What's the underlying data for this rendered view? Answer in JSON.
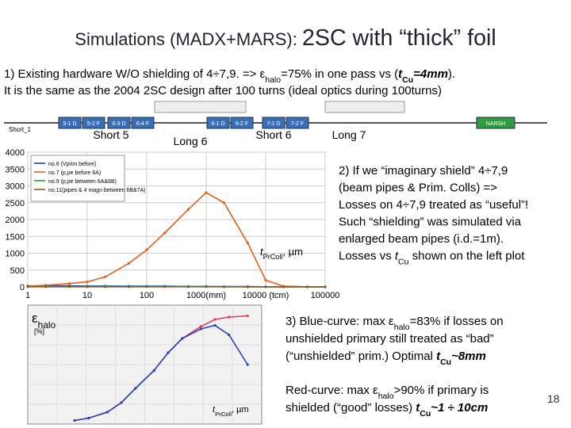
{
  "title": [
    {
      "text": "Simulations (MADX+MARS): "
    },
    {
      "text": "2SC with “thick” foil",
      "style": "large"
    }
  ],
  "intro": [
    [
      {
        "text": "1)  Existing hardware W/O shielding of 4÷7,9. => ε"
      },
      {
        "text": "halo",
        "style": "sub"
      },
      {
        "text": "=75% in one pass vs ("
      },
      {
        "text": "t",
        "style": "bold"
      },
      {
        "text": "Cu",
        "style": "bold-sub"
      },
      {
        "text": "=4mm",
        "style": "bold"
      },
      {
        "text": ")."
      }
    ],
    [
      {
        "text": "It is the same as the 2004 2SC design after 100 turns (ideal optics during 100turns)"
      }
    ]
  ],
  "beamline": {
    "sections": [
      "Short 5",
      "Long 6",
      "Short 6",
      "Long 7",
      "Short_1"
    ],
    "magnets": [
      "5-1 D",
      "5-2 F",
      "6-3 D",
      "6-4 F",
      "6-1 D",
      "6-2 F",
      "7-1 D",
      "7-2 F",
      "NARSH"
    ]
  },
  "note2": [
    [
      {
        "text": "2) If we “imaginary shield” 4÷7,9"
      }
    ],
    [
      {
        "text": "(beam pipes & Prim. Colls) =>"
      }
    ],
    [
      {
        "text": "Losses on 4÷7,9 treated as “useful”!"
      }
    ],
    [
      {
        "text": "Such “shielding” was simulated via"
      }
    ],
    [
      {
        "text": "enlarged beam pipes (i.d.=1m)."
      }
    ],
    [
      {
        "text": "Losses vs "
      },
      {
        "text": "t",
        "style": "italic"
      },
      {
        "text": "Cu",
        "style": "sub"
      },
      {
        "text": " shown on the left plot"
      }
    ]
  ],
  "note3": [
    [
      {
        "text": "3) Blue-curve: max ε"
      },
      {
        "text": "halo",
        "style": "sub"
      },
      {
        "text": "=83% if losses on"
      }
    ],
    [
      {
        "text": "unshielded primary still treated as “bad”"
      }
    ],
    [
      {
        "text": "(“unshielded” prim.) Optimal "
      },
      {
        "text": "t",
        "style": "bold"
      },
      {
        "text": "Cu",
        "style": "bold-sub"
      },
      {
        "text": "~8mm",
        "style": "bold"
      }
    ]
  ],
  "note4": [
    [
      {
        "text": "Red-curve: max ε"
      },
      {
        "text": "halo",
        "style": "sub"
      },
      {
        "text": ">90% if primary is"
      }
    ],
    [
      {
        "text": "shielded (“good” losses) "
      },
      {
        "text": "t",
        "style": "bold"
      },
      {
        "text": "Cu",
        "style": "bold-sub"
      },
      {
        "text": "~1 ÷ 10cm",
        "style": "bold"
      }
    ]
  ],
  "page_number": "18",
  "chart_data": [
    {
      "type": "line",
      "x": [
        1,
        2,
        5,
        10,
        20,
        50,
        100,
        200,
        500,
        1000,
        2000,
        5000,
        10000,
        20000,
        50000,
        100000
      ],
      "series": [
        {
          "name": "no.6 (Vprim before)",
          "color": "#1f3fbf",
          "values": [
            30,
            30,
            30,
            25,
            25,
            20,
            20,
            20,
            15,
            15,
            10,
            10,
            5,
            5,
            5,
            5
          ]
        },
        {
          "name": "no.7 (p,pe before 6A)",
          "color": "#e0601a",
          "values": [
            20,
            50,
            100,
            150,
            300,
            700,
            1100,
            1600,
            2300,
            2800,
            2500,
            1300,
            200,
            20,
            5,
            0
          ]
        },
        {
          "name": "no.9 (p,pe between 6A&6B)",
          "color": "#2a9a3a",
          "values": [
            10,
            10,
            10,
            10,
            10,
            10,
            10,
            10,
            10,
            10,
            5,
            5,
            5,
            0,
            0,
            0
          ]
        },
        {
          "name": "no.11(pipes & 4 magn between 6B&7A)",
          "color": "#8b5a2b",
          "values": [
            5,
            5,
            5,
            5,
            5,
            5,
            5,
            5,
            5,
            5,
            5,
            0,
            0,
            0,
            0,
            0
          ]
        }
      ],
      "xlim": [
        1,
        100000
      ],
      "ylim": [
        0,
        4000
      ],
      "xticks": [
        1,
        10,
        100,
        {
          "value": 1000,
          "label": "1000(mm)"
        },
        {
          "value": 10000,
          "label": "10000 (tcm)"
        },
        100000
      ],
      "yticks": [
        0,
        500,
        1000,
        1500,
        2000,
        2500,
        3000,
        3500,
        4000
      ],
      "log_x": true,
      "grid": true,
      "legend": "upper left",
      "x_label": [
        {
          "text": "t",
          "style": "italic"
        },
        {
          "text": "PrColl",
          "style": "sub"
        },
        {
          "text": ", µm"
        }
      ]
    },
    {
      "type": "line",
      "x": [
        10,
        20,
        50,
        100,
        200,
        500,
        1000,
        2000,
        5000,
        10000,
        20000,
        50000
      ],
      "series": [
        {
          "color": "#e83a5a",
          "values": [
            3,
            5,
            10,
            18,
            30,
            45,
            60,
            72,
            82,
            88,
            90,
            91
          ]
        },
        {
          "color": "#2a3fc0",
          "values": [
            3,
            5,
            10,
            18,
            30,
            45,
            60,
            72,
            80,
            83,
            75,
            50
          ]
        }
      ],
      "xlim": [
        1,
        100000
      ],
      "ylim": [
        0,
        100
      ],
      "log_x": true,
      "grid": true,
      "y_label": [
        {
          "text": "ε"
        },
        {
          "text": "halo",
          "style": "sub"
        }
      ],
      "y_unit": "[%]",
      "x_label": [
        {
          "text": "t",
          "style": "italic"
        },
        {
          "text": "PrColl",
          "style": "sub"
        },
        {
          "text": ", µm"
        }
      ]
    }
  ]
}
